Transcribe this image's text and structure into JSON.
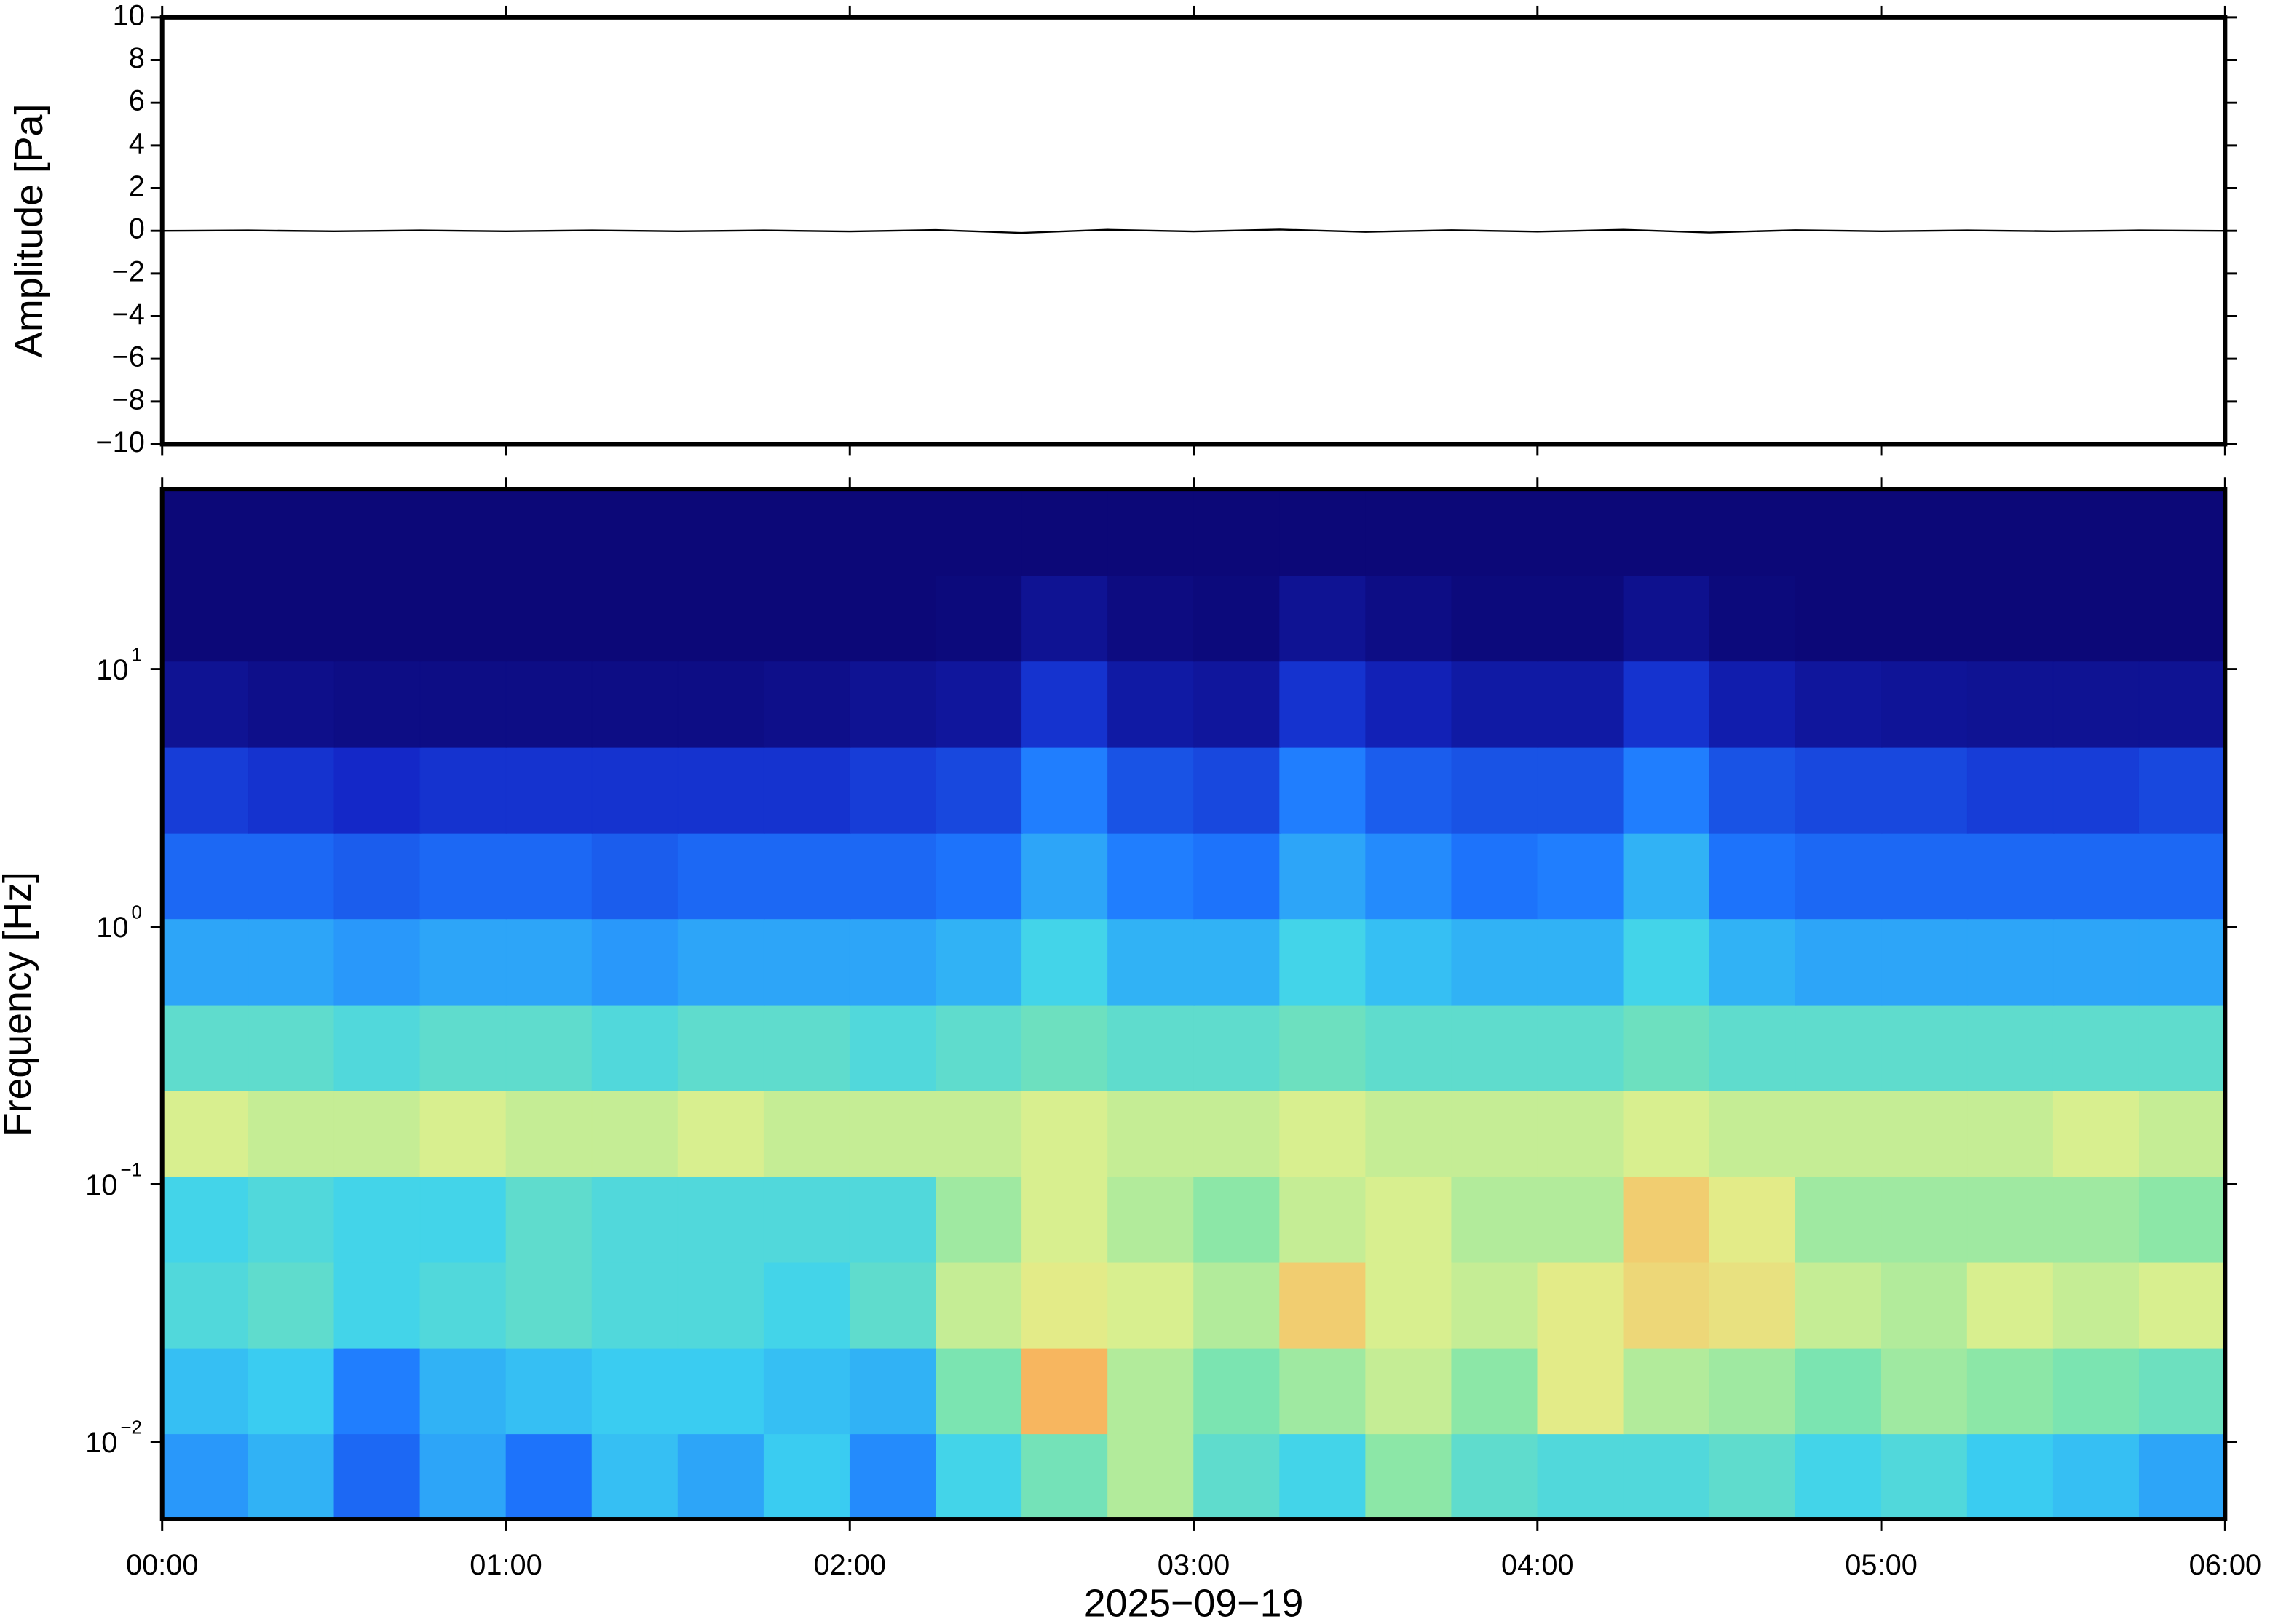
{
  "chart_data": [
    {
      "type": "line",
      "ylabel": "Amplitude [Pa]",
      "xlim": [
        0,
        6
      ],
      "xticks": [
        0,
        1,
        2,
        3,
        4,
        5,
        6
      ],
      "ylim": [
        -10,
        10
      ],
      "yticks": [
        {
          "value": -10,
          "label": "−10"
        },
        {
          "value": -8,
          "label": "−8"
        },
        {
          "value": -6,
          "label": "−6"
        },
        {
          "value": -4,
          "label": "−4"
        },
        {
          "value": -2,
          "label": "−2"
        },
        0,
        2,
        4,
        6,
        8,
        10
      ],
      "x": [
        0,
        0.25,
        0.5,
        0.75,
        1,
        1.25,
        1.5,
        1.75,
        2,
        2.25,
        2.5,
        2.75,
        3,
        3.25,
        3.5,
        3.75,
        4,
        4.25,
        4.5,
        4.75,
        5,
        5.25,
        5.5,
        5.75,
        6
      ],
      "series": [
        {
          "color": "#000000",
          "values": [
            0,
            0.02,
            -0.02,
            0.02,
            -0.02,
            0.02,
            -0.02,
            0.02,
            -0.03,
            0.04,
            -0.1,
            0.05,
            -0.03,
            0.06,
            -0.05,
            0.03,
            -0.04,
            0.05,
            -0.08,
            0.03,
            -0.02,
            0.02,
            -0.02,
            0.02,
            0
          ]
        }
      ]
    },
    {
      "type": "heatmap",
      "ylabel": "Frequency [Hz]",
      "xlabel": "2025−09−19",
      "colormap": "jet",
      "zlim": [
        0,
        100
      ],
      "xlim": [
        0,
        6
      ],
      "xticks": [
        {
          "value": 0,
          "label": "00:00"
        },
        {
          "value": 1,
          "label": "01:00"
        },
        {
          "value": 2,
          "label": "02:00"
        },
        {
          "value": 3,
          "label": "03:00"
        },
        {
          "value": 4,
          "label": "04:00"
        },
        {
          "value": 5,
          "label": "05:00"
        },
        {
          "value": 6,
          "label": "06:00"
        }
      ],
      "ylim": [
        0.005,
        50
      ],
      "ylog": true,
      "yticks": [
        {
          "value": 0.01,
          "label": "10",
          "exponent": "−2"
        },
        {
          "value": 0.1,
          "label": "10",
          "exponent": "−1"
        },
        {
          "value": 1,
          "label": "10",
          "exponent": "0"
        },
        {
          "value": 10,
          "label": "10",
          "exponent": "1"
        }
      ],
      "x_edges": [
        0,
        0.25,
        0.5,
        0.75,
        1,
        1.25,
        1.5,
        1.75,
        2,
        2.25,
        2.5,
        2.75,
        3,
        3.25,
        3.5,
        3.75,
        4,
        4.25,
        4.5,
        4.75,
        5,
        5.25,
        5.5,
        5.75,
        6
      ],
      "y_edges": [
        0.005,
        0.0108,
        0.0232,
        0.05,
        0.108,
        0.232,
        0.5,
        1.08,
        2.32,
        5,
        10.8,
        23.2,
        50
      ],
      "values": [
        [
          38,
          42,
          30,
          40,
          32,
          44,
          40,
          46,
          36,
          48,
          55,
          62,
          52,
          48,
          58,
          52,
          50,
          50,
          52,
          48,
          50,
          46,
          44,
          40
        ],
        [
          44,
          46,
          34,
          42,
          44,
          46,
          46,
          44,
          42,
          56,
          78,
          62,
          56,
          60,
          64,
          58,
          68,
          62,
          60,
          56,
          60,
          58,
          56,
          54
        ],
        [
          50,
          52,
          48,
          50,
          52,
          50,
          50,
          48,
          52,
          64,
          68,
          66,
          62,
          74,
          66,
          64,
          68,
          72,
          70,
          64,
          62,
          66,
          64,
          66
        ],
        [
          48,
          50,
          48,
          48,
          52,
          50,
          50,
          50,
          50,
          60,
          66,
          62,
          58,
          64,
          66,
          62,
          62,
          74,
          68,
          60,
          60,
          60,
          60,
          58
        ],
        [
          66,
          64,
          64,
          66,
          64,
          64,
          66,
          64,
          64,
          64,
          66,
          64,
          64,
          66,
          64,
          64,
          64,
          66,
          64,
          64,
          64,
          64,
          66,
          64
        ],
        [
          52,
          52,
          50,
          52,
          52,
          50,
          52,
          52,
          50,
          52,
          54,
          52,
          52,
          54,
          52,
          52,
          52,
          54,
          52,
          52,
          52,
          52,
          52,
          52
        ],
        [
          40,
          40,
          38,
          40,
          40,
          38,
          40,
          40,
          40,
          42,
          48,
          42,
          42,
          48,
          44,
          42,
          42,
          48,
          42,
          40,
          40,
          40,
          40,
          40
        ],
        [
          30,
          30,
          28,
          30,
          30,
          28,
          30,
          30,
          30,
          32,
          40,
          34,
          32,
          40,
          36,
          32,
          34,
          42,
          32,
          30,
          30,
          30,
          30,
          30
        ],
        [
          22,
          20,
          18,
          20,
          20,
          20,
          20,
          20,
          22,
          24,
          34,
          26,
          24,
          34,
          28,
          26,
          26,
          34,
          26,
          24,
          24,
          22,
          22,
          24
        ],
        [
          6,
          4,
          3,
          3,
          3,
          3,
          3,
          4,
          6,
          8,
          20,
          10,
          8,
          20,
          14,
          10,
          10,
          20,
          12,
          8,
          7,
          6,
          6,
          6
        ],
        [
          0,
          0,
          0,
          0,
          0,
          0,
          0,
          0,
          0,
          1,
          6,
          2,
          1,
          6,
          3,
          1,
          1,
          5,
          1,
          0,
          0,
          0,
          0,
          0
        ],
        [
          0,
          0,
          0,
          0,
          0,
          0,
          0,
          0,
          0,
          0,
          0,
          0,
          0,
          0,
          0,
          0,
          0,
          0,
          0,
          0,
          0,
          0,
          0,
          0
        ]
      ]
    }
  ]
}
